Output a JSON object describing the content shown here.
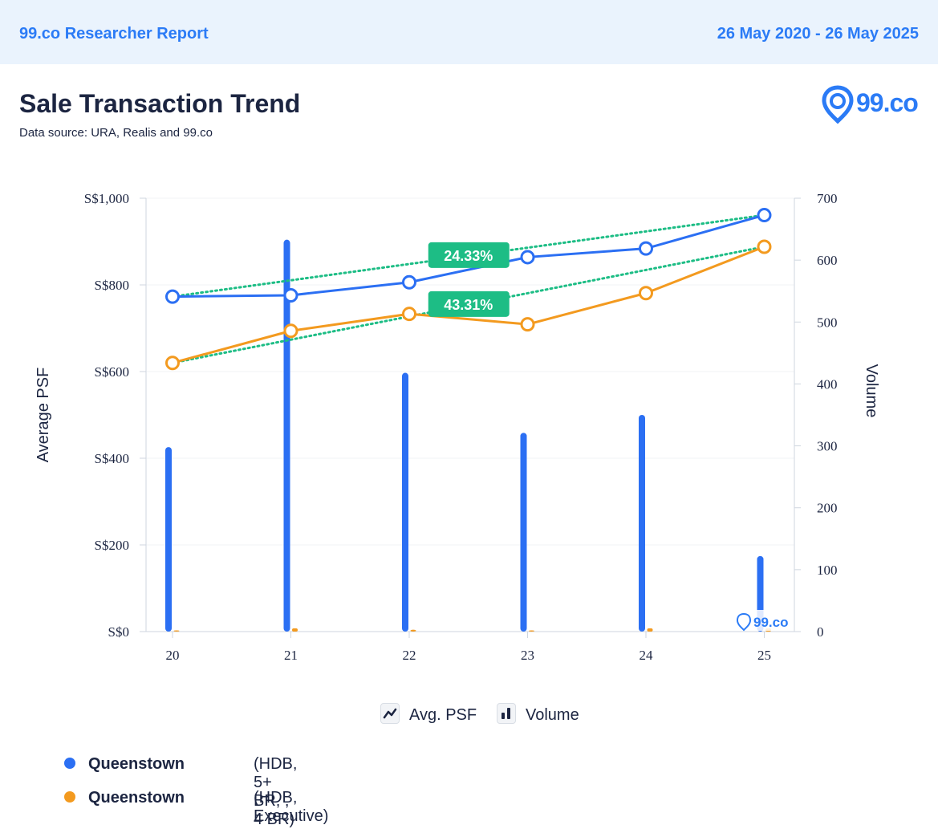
{
  "header": {
    "report_title": "99.co Researcher Report",
    "date_range": "26 May 2020 - 26 May 2025"
  },
  "page": {
    "title": "Sale Transaction Trend",
    "subtitle": "Data source: URA, Realis and 99.co"
  },
  "logo": {
    "text": "99.co",
    "icon": "location-pin-icon"
  },
  "colors": {
    "blue": "#2b6ff3",
    "orange": "#f39a1f",
    "trend": "#1dbd85",
    "badge": "#1dbd85",
    "axis": "#cfd6df",
    "grid": "#f1f3f6"
  },
  "chart_data": {
    "type": "line",
    "x": [
      "20",
      "21",
      "22",
      "23",
      "24",
      "25"
    ],
    "ylabel": "Average PSF",
    "y2label": "Volume",
    "ylim": [
      0,
      1000
    ],
    "y_ticks": [
      "S$0",
      "S$200",
      "S$400",
      "S$600",
      "S$800",
      "S$1,000"
    ],
    "y2lim": [
      0,
      700
    ],
    "y2_ticks": [
      "0",
      "100",
      "200",
      "300",
      "400",
      "500",
      "600",
      "700"
    ],
    "series": [
      {
        "name": "Queenstown (HDB, 5+ BR, , 4 BR)",
        "kind": "line",
        "axis": "left",
        "color": "#2b6ff3",
        "values": [
          773,
          776,
          806,
          864,
          884,
          961
        ]
      },
      {
        "name": "Queenstown (HDB, Executive)",
        "kind": "line",
        "axis": "left",
        "color": "#f39a1f",
        "values": [
          620,
          694,
          733,
          709,
          781,
          888
        ]
      },
      {
        "name": "Queenstown (HDB, 5+ BR, , 4 BR)",
        "kind": "bar",
        "axis": "right",
        "color": "#2b6ff3",
        "values": [
          298,
          633,
          418,
          321,
          350,
          122
        ]
      },
      {
        "name": "Queenstown (HDB, Executive)",
        "kind": "bar",
        "axis": "right",
        "color": "#f39a1f",
        "values": [
          2,
          0,
          3,
          2,
          0,
          0
        ]
      }
    ],
    "trendlines": [
      {
        "series": "blue",
        "from": 773,
        "to": 961,
        "label": "24.33%",
        "label_at": "22.5"
      },
      {
        "series": "orange",
        "from": 620,
        "to": 888,
        "label": "43.31%",
        "label_at": "22.5"
      }
    ],
    "watermark": "99.co",
    "legend": [
      {
        "label": "Avg. PSF",
        "icon": "line-chart-icon"
      },
      {
        "label": "Volume",
        "icon": "bar-chart-icon"
      }
    ]
  },
  "series_legend": [
    {
      "name": "Queenstown",
      "detail": " (HDB, 5+ BR, , 4 BR)",
      "color": "#2b6ff3"
    },
    {
      "name": "Queenstown",
      "detail": " (HDB, Executive)",
      "color": "#f39a1f"
    }
  ]
}
